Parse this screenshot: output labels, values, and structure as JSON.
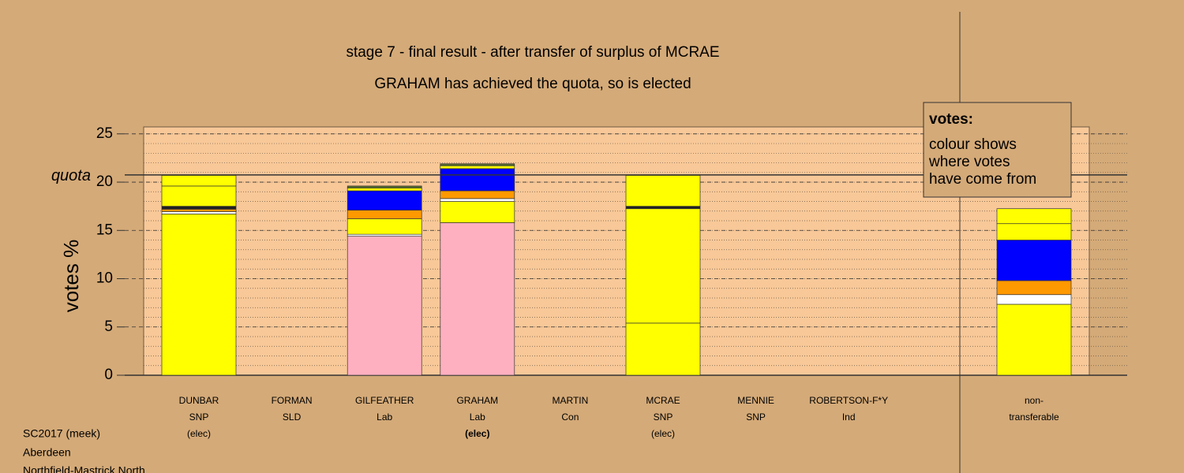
{
  "chart_data": {
    "type": "stacked-bar",
    "title": "stage 7 - final result - after transfer of surplus of MCRAE",
    "subtitle": "GRAHAM has achieved the quota, so is elected",
    "y_label": "votes %",
    "quota_label": "quota",
    "quota": 20.75,
    "ylim": [
      0,
      25.8
    ],
    "yticks": [
      0,
      5,
      10,
      15,
      20,
      25
    ],
    "grid": true,
    "minor_grid_step": 1,
    "categories": [
      [
        "DUNBAR",
        "SNP",
        "(elec)"
      ],
      [
        "FORMAN",
        "SLD"
      ],
      [
        "GILFEATHER",
        "Lab"
      ],
      [
        "GRAHAM",
        "Lab",
        "(elec)"
      ],
      [
        "MARTIN",
        "Con"
      ],
      [
        "MCRAE",
        "SNP",
        "(elec)"
      ],
      [
        "MENNIE",
        "SNP"
      ],
      [
        "ROBERTSON-F*Y",
        "Ind"
      ],
      [
        "non-",
        "transferable"
      ]
    ],
    "stacks": [
      {
        "values": [
          16.7,
          0.25,
          0.25,
          0.3,
          2.1,
          1.1
        ],
        "colors": [
          "#ffff00",
          "#ffffff",
          "#ff9900",
          "#222222",
          "#ffff00",
          "#ffff00"
        ]
      },
      {
        "values": [],
        "colors": []
      },
      {
        "values": [
          14.4,
          0.2,
          1.6,
          0.9,
          2.0,
          0.3,
          0.2
        ],
        "colors": [
          "#ffb0c0",
          "#ffffff",
          "#ffff00",
          "#ff9900",
          "#0000ff",
          "#ffff00",
          "#556b2f"
        ]
      },
      {
        "values": [
          15.8,
          2.2,
          0.3,
          0.8,
          2.3,
          0.3,
          0.2
        ],
        "colors": [
          "#ffb0c0",
          "#ffff00",
          "#ffffff",
          "#ff9900",
          "#0000ff",
          "#ffff00",
          "#556b2f"
        ]
      },
      {
        "values": [],
        "colors": []
      },
      {
        "values": [
          5.4,
          11.85,
          0.25,
          3.2
        ],
        "colors": [
          "#ffff00",
          "#ffff00",
          "#222222",
          "#ffff00"
        ]
      },
      {
        "values": [],
        "colors": []
      },
      {
        "values": [],
        "colors": []
      },
      {
        "values": [
          7.35,
          1.0,
          1.45,
          4.2,
          1.7,
          1.55
        ],
        "colors": [
          "#ffff00",
          "#ffffff",
          "#ff9900",
          "#0000ff",
          "#ffff00",
          "#ffff00"
        ]
      }
    ],
    "note": {
      "title": "votes:",
      "lines": [
        "colour shows",
        "where votes",
        "have come from"
      ]
    },
    "footer": [
      "SC2017 (meek)",
      "Aberdeen",
      "Northfield-Mastrick North"
    ]
  }
}
